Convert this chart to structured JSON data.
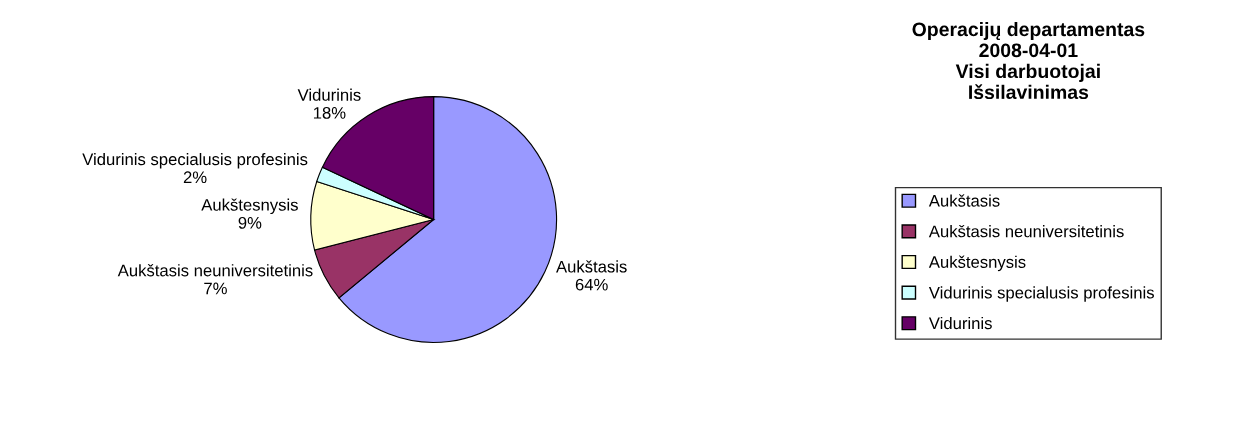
{
  "chart_data": {
    "type": "pie",
    "title": "Operacijų departamentas\n2008-04-01\nVisi darbuotojai\nIšsilavinimas",
    "categories": [
      "Aukštasis",
      "Aukštasis neuniversitetinis",
      "Aukštesnysis",
      "Vidurinis specialusis profesinis",
      "Vidurinis"
    ],
    "values": [
      64,
      7,
      9,
      2,
      18
    ],
    "value_labels": [
      "64%",
      "7%",
      "9%",
      "2%",
      "18%"
    ],
    "colors": [
      "#9999ff",
      "#993366",
      "#ffffcc",
      "#ccffff",
      "#660066"
    ],
    "legend": "right"
  }
}
